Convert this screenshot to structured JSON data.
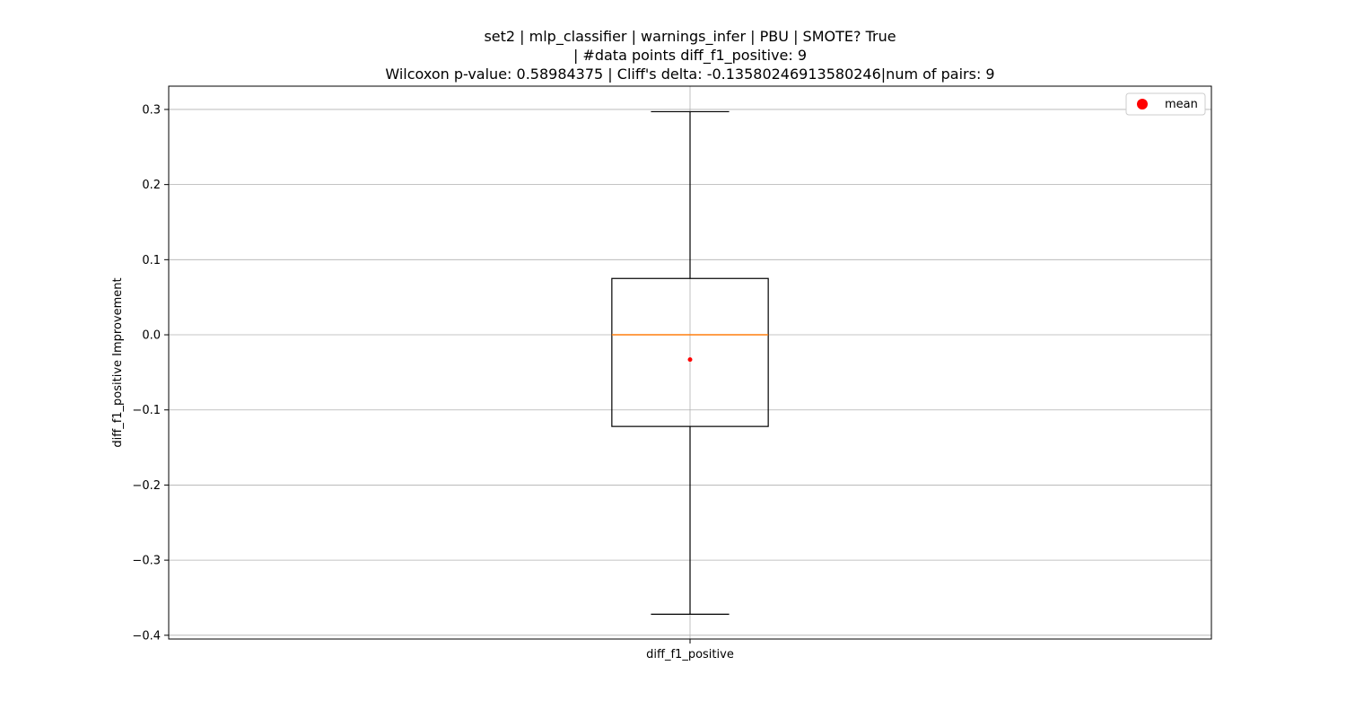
{
  "chart_data": {
    "type": "box",
    "title_lines": [
      "set2 | mlp_classifier | warnings_infer | PBU | SMOTE? True",
      "| #data points diff_f1_positive: 9",
      "Wilcoxon p-value: 0.58984375 | Cliff's delta: -0.13580246913580246|num of pairs: 9"
    ],
    "ylabel": "diff_f1_positive Improvement",
    "categories": [
      "diff_f1_positive"
    ],
    "ylim": [
      -0.405,
      0.331
    ],
    "yticks": [
      0.3,
      0.2,
      0.1,
      0.0,
      -0.1,
      -0.2,
      -0.3,
      -0.4
    ],
    "ytick_labels": [
      "0.3",
      "0.2",
      "0.1",
      "0.0",
      "−0.1",
      "−0.2",
      "−0.3",
      "−0.4"
    ],
    "grid": true,
    "boxes": [
      {
        "category": "diff_f1_positive",
        "whisker_low": -0.372,
        "q1": -0.122,
        "median": 0.0,
        "q3": 0.075,
        "whisker_high": 0.297,
        "mean": -0.033
      }
    ],
    "legend": {
      "position": "top-right",
      "entries": [
        {
          "label": "mean",
          "color": "#ff0000"
        }
      ]
    },
    "colors": {
      "box": "#000000",
      "median": "#ff7f0e",
      "mean": "#ff0000",
      "grid": "#b0b0b0"
    }
  }
}
